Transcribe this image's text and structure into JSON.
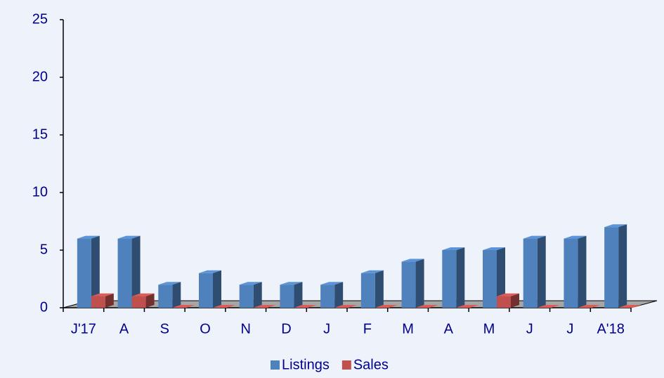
{
  "chart_data": {
    "type": "bar3d",
    "categories": [
      "J'17",
      "A",
      "S",
      "O",
      "N",
      "D",
      "J",
      "F",
      "M",
      "A",
      "M",
      "J",
      "J",
      "A'18"
    ],
    "series": [
      {
        "name": "Listings",
        "color": "#4f81bd",
        "values": [
          6,
          6,
          2,
          3,
          2,
          2,
          2,
          3,
          4,
          5,
          5,
          6,
          6,
          7
        ]
      },
      {
        "name": "Sales",
        "color": "#c0504d",
        "values": [
          1,
          1,
          0,
          0,
          0,
          0,
          0,
          0,
          0,
          0,
          1,
          0,
          0,
          0
        ]
      }
    ],
    "ylim": [
      0,
      25
    ],
    "yticks": [
      0,
      5,
      10,
      15,
      20,
      25
    ],
    "legend": "bottom"
  }
}
